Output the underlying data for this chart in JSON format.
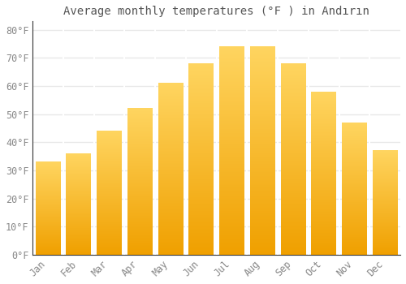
{
  "title": "Average monthly temperatures (°F ) in Andırın",
  "months": [
    "Jan",
    "Feb",
    "Mar",
    "Apr",
    "May",
    "Jun",
    "Jul",
    "Aug",
    "Sep",
    "Oct",
    "Nov",
    "Dec"
  ],
  "values": [
    33,
    36,
    44,
    52,
    61,
    68,
    74,
    74,
    68,
    58,
    47,
    37
  ],
  "bar_color_bottom": "#F5A800",
  "bar_color_top": "#FFD966",
  "bar_color_mid": "#FFC020",
  "background_color": "#FFFFFF",
  "grid_color": "#E8E8E8",
  "text_color": "#888888",
  "title_color": "#555555",
  "axis_color": "#333333",
  "ylim": [
    0,
    83
  ],
  "yticks": [
    0,
    10,
    20,
    30,
    40,
    50,
    60,
    70,
    80
  ],
  "ytick_labels": [
    "0°F",
    "10°F",
    "20°F",
    "30°F",
    "40°F",
    "50°F",
    "60°F",
    "70°F",
    "80°F"
  ],
  "title_fontsize": 10,
  "tick_fontsize": 8.5,
  "bar_width": 0.82
}
